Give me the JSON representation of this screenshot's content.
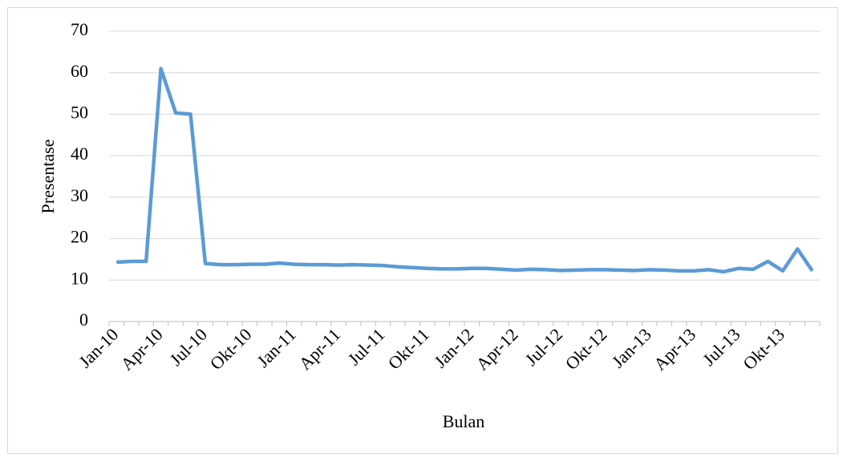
{
  "chart_data": {
    "type": "line",
    "x_label": "Bulan",
    "y_label": "Presentase",
    "categories": [
      "Jan-10",
      null,
      null,
      "Apr-10",
      null,
      null,
      "Jul-10",
      null,
      null,
      "Okt-10",
      null,
      null,
      "Jan-11",
      null,
      null,
      "Apr-11",
      null,
      null,
      "Jul-11",
      null,
      null,
      "Okt-11",
      null,
      null,
      "Jan-12",
      null,
      null,
      "Apr-12",
      null,
      null,
      "Jul-12",
      null,
      null,
      "Okt-12",
      null,
      null,
      "Jan-13",
      null,
      null,
      "Apr-13",
      null,
      null,
      "Jul-13",
      null,
      null,
      "Okt-13",
      null,
      null
    ],
    "values": [
      14.3,
      14.5,
      14.5,
      61,
      50.3,
      50,
      14,
      13.7,
      13.7,
      13.8,
      13.8,
      14.1,
      13.8,
      13.7,
      13.7,
      13.6,
      13.7,
      13.6,
      13.5,
      13.2,
      13.0,
      12.8,
      12.7,
      12.7,
      12.8,
      12.8,
      12.6,
      12.4,
      12.6,
      12.5,
      12.3,
      12.4,
      12.5,
      12.5,
      12.4,
      12.3,
      12.5,
      12.4,
      12.2,
      12.2,
      12.5,
      12.0,
      12.8,
      12.6,
      14.5,
      12.2,
      17.5,
      12.2
    ],
    "color": "#5b9bd5",
    "ylim": [
      0,
      70
    ],
    "yticks": [
      0,
      10,
      20,
      30,
      40,
      50,
      60,
      70
    ],
    "grid": true
  }
}
